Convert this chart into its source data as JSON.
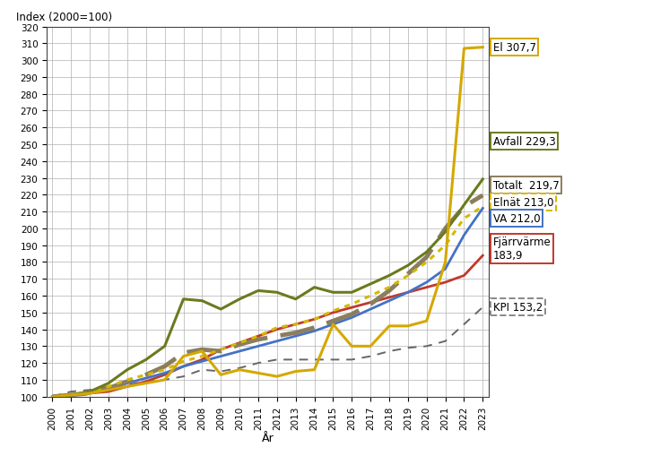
{
  "years": [
    2000,
    2001,
    2002,
    2003,
    2004,
    2005,
    2006,
    2007,
    2008,
    2009,
    2010,
    2011,
    2012,
    2013,
    2014,
    2015,
    2016,
    2017,
    2018,
    2019,
    2020,
    2021,
    2022,
    2023
  ],
  "El": [
    100,
    101,
    102,
    104,
    106,
    108,
    110,
    124,
    127,
    113,
    116,
    114,
    112,
    115,
    116,
    143,
    130,
    130,
    142,
    142,
    145,
    180,
    307,
    307.7
  ],
  "Avfall": [
    100,
    101,
    103,
    108,
    116,
    122,
    130,
    158,
    157,
    152,
    158,
    163,
    162,
    158,
    165,
    162,
    162,
    167,
    172,
    178,
    186,
    198,
    214,
    229.3
  ],
  "Totalt": [
    100,
    101,
    102,
    105,
    109,
    113,
    118,
    126,
    128,
    127,
    131,
    134,
    136,
    138,
    141,
    145,
    149,
    155,
    163,
    173,
    183,
    200,
    213,
    219.7
  ],
  "Elnat": [
    100,
    101,
    103,
    106,
    110,
    113,
    116,
    121,
    124,
    128,
    132,
    136,
    141,
    143,
    146,
    151,
    155,
    160,
    165,
    172,
    180,
    190,
    206,
    213.0
  ],
  "VA": [
    100,
    101,
    102,
    104,
    108,
    111,
    114,
    118,
    121,
    124,
    127,
    130,
    133,
    136,
    139,
    143,
    147,
    152,
    157,
    162,
    168,
    176,
    196,
    212.0
  ],
  "Fjarrvarme": [
    100,
    101,
    102,
    103,
    106,
    109,
    113,
    118,
    122,
    128,
    132,
    136,
    140,
    143,
    146,
    150,
    153,
    156,
    159,
    162,
    165,
    168,
    172,
    183.9
  ],
  "KPI": [
    100,
    103,
    104,
    106,
    107,
    109,
    110,
    112,
    116,
    115,
    117,
    120,
    122,
    122,
    122,
    122,
    122,
    124,
    127,
    129,
    130,
    133,
    143,
    153.2
  ],
  "ylabel": "Index (2000=100)",
  "xlabel": "År",
  "ylim_min": 100,
  "ylim_max": 320,
  "yticks": [
    100,
    110,
    120,
    130,
    140,
    150,
    160,
    170,
    180,
    190,
    200,
    210,
    220,
    230,
    240,
    250,
    260,
    270,
    280,
    290,
    300,
    310,
    320
  ],
  "color_el": "#d4a800",
  "color_avfall": "#6b7a1e",
  "color_totalt": "#8b7d5e",
  "color_elnat": "#d4b800",
  "color_va": "#4472c4",
  "color_fjarrvarme": "#c0392b",
  "color_kpi": "#666666",
  "label_el": "El 307,7",
  "label_avfall": "Avfall 229,3",
  "label_totalt": "Totalt  219,7",
  "label_elnat": "Elnät 213,0",
  "label_va": "VA 212,0",
  "label_fjarrvarme": "Fjärrvärme\n183,9",
  "label_kpi": "KPI 153,2",
  "box_edge_el": "#d4a800",
  "box_edge_avfall": "#6b7a1e",
  "box_edge_totalt": "#8b7d5e",
  "box_edge_elnat": "#d4b800",
  "box_edge_va": "#4472c4",
  "box_edge_fjarrvarme": "#c0392b",
  "box_edge_kpi": "#888888"
}
